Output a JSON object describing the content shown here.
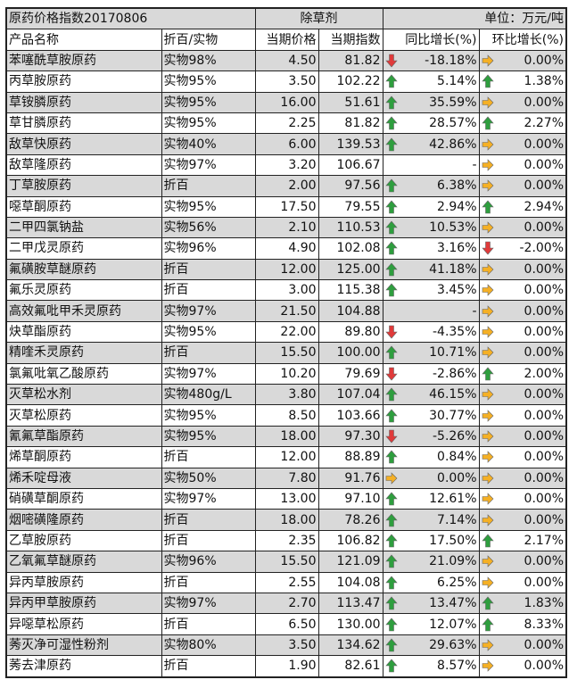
{
  "title": {
    "left": "原药价格指数20170806",
    "center": "除草剂",
    "right": "单位：万元/吨"
  },
  "headers": [
    "产品名称",
    "折百/实物",
    "当期价格",
    "当期指数",
    "同比增长(%)",
    "环比增长(%)"
  ],
  "colors": {
    "up": "#2e9e3e",
    "down": "#e03a3a",
    "flat": "#f5b025",
    "row_alt": "#d9d9d9"
  },
  "rows": [
    [
      "苯噻酰草胺原药",
      "实物98%",
      "4.50",
      "81.82",
      "down",
      "-18.18%",
      "flat",
      "0.00%"
    ],
    [
      "丙草胺原药",
      "实物95%",
      "3.50",
      "102.22",
      "up",
      "5.14%",
      "up",
      "1.38%"
    ],
    [
      "草铵膦原药",
      "实物95%",
      "16.00",
      "51.61",
      "up",
      "35.59%",
      "flat",
      "0.00%"
    ],
    [
      "草甘膦原药",
      "实物95%",
      "2.25",
      "81.82",
      "up",
      "28.57%",
      "up",
      "2.27%"
    ],
    [
      "敌草快原药",
      "实物40%",
      "6.00",
      "139.53",
      "up",
      "42.86%",
      "flat",
      "0.00%"
    ],
    [
      "敌草隆原药",
      "实物97%",
      "3.20",
      "106.67",
      "none",
      "-",
      "flat",
      "0.00%"
    ],
    [
      "丁草胺原药",
      "折百",
      "2.00",
      "97.56",
      "up",
      "6.38%",
      "flat",
      "0.00%"
    ],
    [
      "噁草酮原药",
      "实物95%",
      "17.50",
      "79.55",
      "up",
      "2.94%",
      "up",
      "2.94%"
    ],
    [
      "二甲四氯钠盐",
      "实物56%",
      "2.10",
      "110.53",
      "up",
      "10.53%",
      "flat",
      "0.00%"
    ],
    [
      "二甲戊灵原药",
      "实物96%",
      "4.90",
      "102.08",
      "up",
      "3.16%",
      "down",
      "-2.00%"
    ],
    [
      "氟磺胺草醚原药",
      "折百",
      "12.00",
      "125.00",
      "up",
      "41.18%",
      "flat",
      "0.00%"
    ],
    [
      "氟乐灵原药",
      "折百",
      "3.00",
      "115.38",
      "up",
      "3.45%",
      "flat",
      "0.00%"
    ],
    [
      "高效氟吡甲禾灵原药",
      "实物97%",
      "21.50",
      "104.88",
      "none",
      "-",
      "flat",
      "0.00%"
    ],
    [
      "炔草酯原药",
      "实物95%",
      "22.00",
      "89.80",
      "down",
      "-4.35%",
      "flat",
      "0.00%"
    ],
    [
      "精喹禾灵原药",
      "折百",
      "15.50",
      "100.00",
      "up",
      "10.71%",
      "flat",
      "0.00%"
    ],
    [
      "氯氟吡氧乙酸原药",
      "实物97%",
      "10.20",
      "79.69",
      "down",
      "-2.86%",
      "up",
      "2.00%"
    ],
    [
      "灭草松水剂",
      "实物480g/L",
      "3.80",
      "107.04",
      "up",
      "46.15%",
      "flat",
      "0.00%"
    ],
    [
      "灭草松原药",
      "实物95%",
      "8.50",
      "103.66",
      "up",
      "30.77%",
      "flat",
      "0.00%"
    ],
    [
      "氰氟草酯原药",
      "实物95%",
      "18.00",
      "97.30",
      "down",
      "-5.26%",
      "flat",
      "0.00%"
    ],
    [
      "烯草酮原药",
      "折百",
      "12.00",
      "88.89",
      "up",
      "0.84%",
      "flat",
      "0.00%"
    ],
    [
      "烯禾啶母液",
      "实物50%",
      "7.80",
      "91.76",
      "flat",
      "0.00%",
      "flat",
      "0.00%"
    ],
    [
      "硝磺草酮原药",
      "实物97%",
      "13.00",
      "97.10",
      "up",
      "12.61%",
      "flat",
      "0.00%"
    ],
    [
      "烟嘧磺隆原药",
      "折百",
      "18.00",
      "78.26",
      "up",
      "7.14%",
      "flat",
      "0.00%"
    ],
    [
      "乙草胺原药",
      "折百",
      "2.35",
      "106.82",
      "up",
      "17.50%",
      "up",
      "2.17%"
    ],
    [
      "乙氧氟草醚原药",
      "实物96%",
      "15.50",
      "121.09",
      "up",
      "21.09%",
      "flat",
      "0.00%"
    ],
    [
      "异丙草胺原药",
      "折百",
      "2.55",
      "104.08",
      "up",
      "6.25%",
      "flat",
      "0.00%"
    ],
    [
      "异丙甲草胺原药",
      "实物97%",
      "2.70",
      "113.47",
      "up",
      "13.47%",
      "up",
      "1.83%"
    ],
    [
      "异噁草松原药",
      "折百",
      "6.50",
      "130.00",
      "up",
      "12.07%",
      "up",
      "8.33%"
    ],
    [
      "莠灭净可湿性粉剂",
      "实物80%",
      "3.50",
      "134.62",
      "up",
      "29.63%",
      "flat",
      "0.00%"
    ],
    [
      "莠去津原药",
      "折百",
      "1.90",
      "82.61",
      "up",
      "8.57%",
      "flat",
      "0.00%"
    ]
  ]
}
